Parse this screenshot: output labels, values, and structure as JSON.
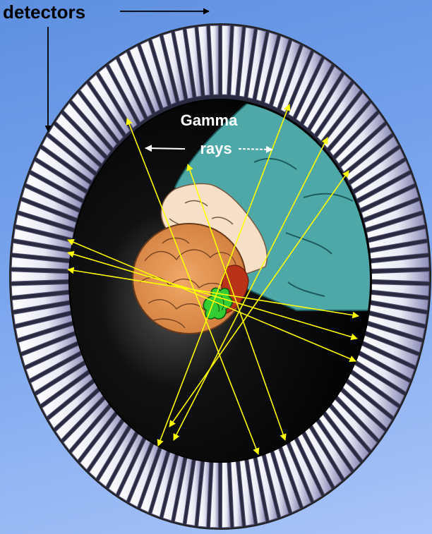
{
  "labels": {
    "detectors": "detectors",
    "gamma_line1": "Gamma",
    "gamma_line2": "rays"
  },
  "colors": {
    "background_top": "#5e8fe0",
    "background_bottom": "#a9c4f8",
    "detector_ring": "#ffffff",
    "detector_shading": "#8888bb",
    "scanner_bore": "#000000",
    "patient_gown": "#4fa8a8",
    "brain": "#e8995a",
    "skin": "#f6e0c8",
    "tumor": "#33cc33",
    "gamma_ray": "#ffff00",
    "label_text": "#000000",
    "label_text_inner": "#ffffff"
  },
  "icons": [
    "detector-ring-icon",
    "patient-head-icon",
    "brain-icon",
    "tumor-icon",
    "gamma-ray-arrow-icon"
  ]
}
